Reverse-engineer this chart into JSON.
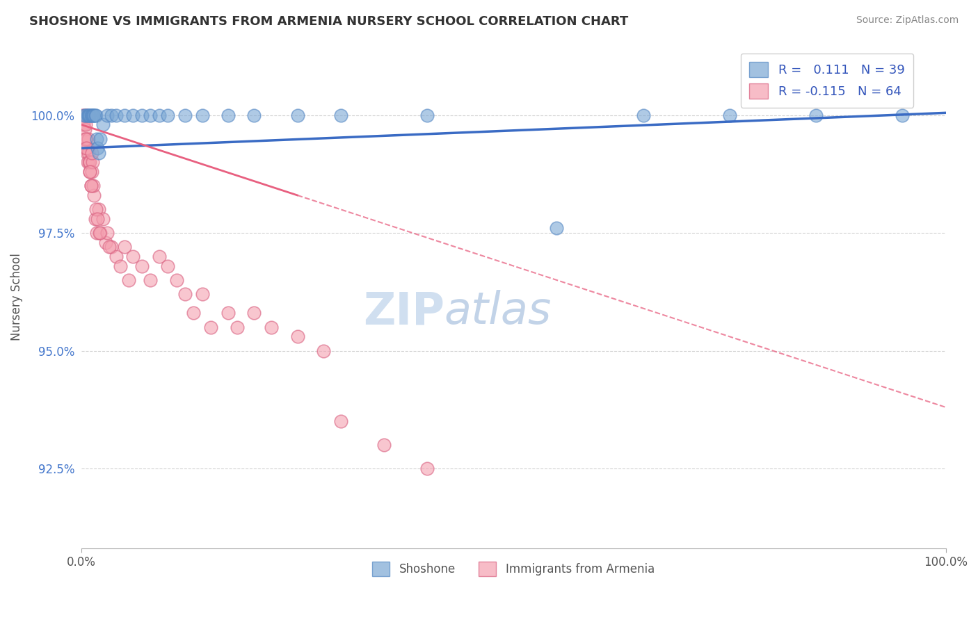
{
  "title": "SHOSHONE VS IMMIGRANTS FROM ARMENIA NURSERY SCHOOL CORRELATION CHART",
  "source_text": "Source: ZipAtlas.com",
  "ylabel": "Nursery School",
  "legend_label1": "Shoshone",
  "legend_label2": "Immigrants from Armenia",
  "r1": 0.111,
  "n1": 39,
  "r2": -0.115,
  "n2": 64,
  "ytick_labels": [
    "92.5%",
    "95.0%",
    "97.5%",
    "100.0%"
  ],
  "ytick_values": [
    92.5,
    95.0,
    97.5,
    100.0
  ],
  "xmin": 0.0,
  "xmax": 100.0,
  "ymin": 90.8,
  "ymax": 101.5,
  "color_shoshone": "#7ba7d4",
  "color_armenia": "#f4a0b0",
  "color_trend_shoshone": "#3a6bc4",
  "color_trend_armenia": "#e86080",
  "watermark_color": "#d0dff0",
  "shoshone_trend_y0": 99.3,
  "shoshone_trend_y1": 100.05,
  "armenia_trend_y0": 99.8,
  "armenia_trend_y1": 93.8,
  "armenia_solid_end_x": 25.0,
  "shoshone_x": [
    0.3,
    0.5,
    0.7,
    0.8,
    0.9,
    1.0,
    1.1,
    1.2,
    1.3,
    1.4,
    1.5,
    1.6,
    1.7,
    1.8,
    1.9,
    2.0,
    2.2,
    2.5,
    3.0,
    3.5,
    4.0,
    5.0,
    6.0,
    7.0,
    8.0,
    9.0,
    10.0,
    12.0,
    14.0,
    17.0,
    20.0,
    25.0,
    30.0,
    40.0,
    55.0,
    65.0,
    75.0,
    85.0,
    95.0
  ],
  "shoshone_y": [
    100.0,
    100.0,
    100.0,
    100.0,
    100.0,
    100.0,
    100.0,
    100.0,
    100.0,
    100.0,
    100.0,
    100.0,
    100.0,
    99.5,
    99.3,
    99.2,
    99.5,
    99.8,
    100.0,
    100.0,
    100.0,
    100.0,
    100.0,
    100.0,
    100.0,
    100.0,
    100.0,
    100.0,
    100.0,
    100.0,
    100.0,
    100.0,
    100.0,
    100.0,
    97.6,
    100.0,
    100.0,
    100.0,
    100.0
  ],
  "armenia_x": [
    0.1,
    0.2,
    0.25,
    0.3,
    0.35,
    0.4,
    0.45,
    0.5,
    0.55,
    0.6,
    0.65,
    0.7,
    0.75,
    0.8,
    0.85,
    0.9,
    0.95,
    1.0,
    1.1,
    1.2,
    1.3,
    1.5,
    1.6,
    1.8,
    2.0,
    2.2,
    2.5,
    2.8,
    3.0,
    3.5,
    4.0,
    4.5,
    5.0,
    5.5,
    6.0,
    7.0,
    8.0,
    9.0,
    10.0,
    11.0,
    12.0,
    13.0,
    14.0,
    15.0,
    17.0,
    18.0,
    20.0,
    22.0,
    3.2,
    1.4,
    1.7,
    1.9,
    2.1,
    0.5,
    0.6,
    0.55,
    1.0,
    1.1,
    25.0,
    28.0,
    30.0,
    35.0,
    40.0,
    1.25
  ],
  "armenia_y": [
    100.0,
    99.8,
    99.8,
    100.0,
    99.5,
    99.3,
    99.7,
    99.8,
    100.0,
    99.5,
    99.2,
    99.0,
    99.3,
    99.5,
    99.2,
    99.0,
    98.8,
    99.0,
    98.5,
    98.8,
    99.0,
    98.3,
    97.8,
    97.5,
    98.0,
    97.5,
    97.8,
    97.3,
    97.5,
    97.2,
    97.0,
    96.8,
    97.2,
    96.5,
    97.0,
    96.8,
    96.5,
    97.0,
    96.8,
    96.5,
    96.2,
    95.8,
    96.2,
    95.5,
    95.8,
    95.5,
    95.8,
    95.5,
    97.2,
    98.5,
    98.0,
    97.8,
    97.5,
    99.5,
    99.3,
    100.0,
    98.8,
    98.5,
    95.3,
    95.0,
    93.5,
    93.0,
    92.5,
    99.2
  ]
}
